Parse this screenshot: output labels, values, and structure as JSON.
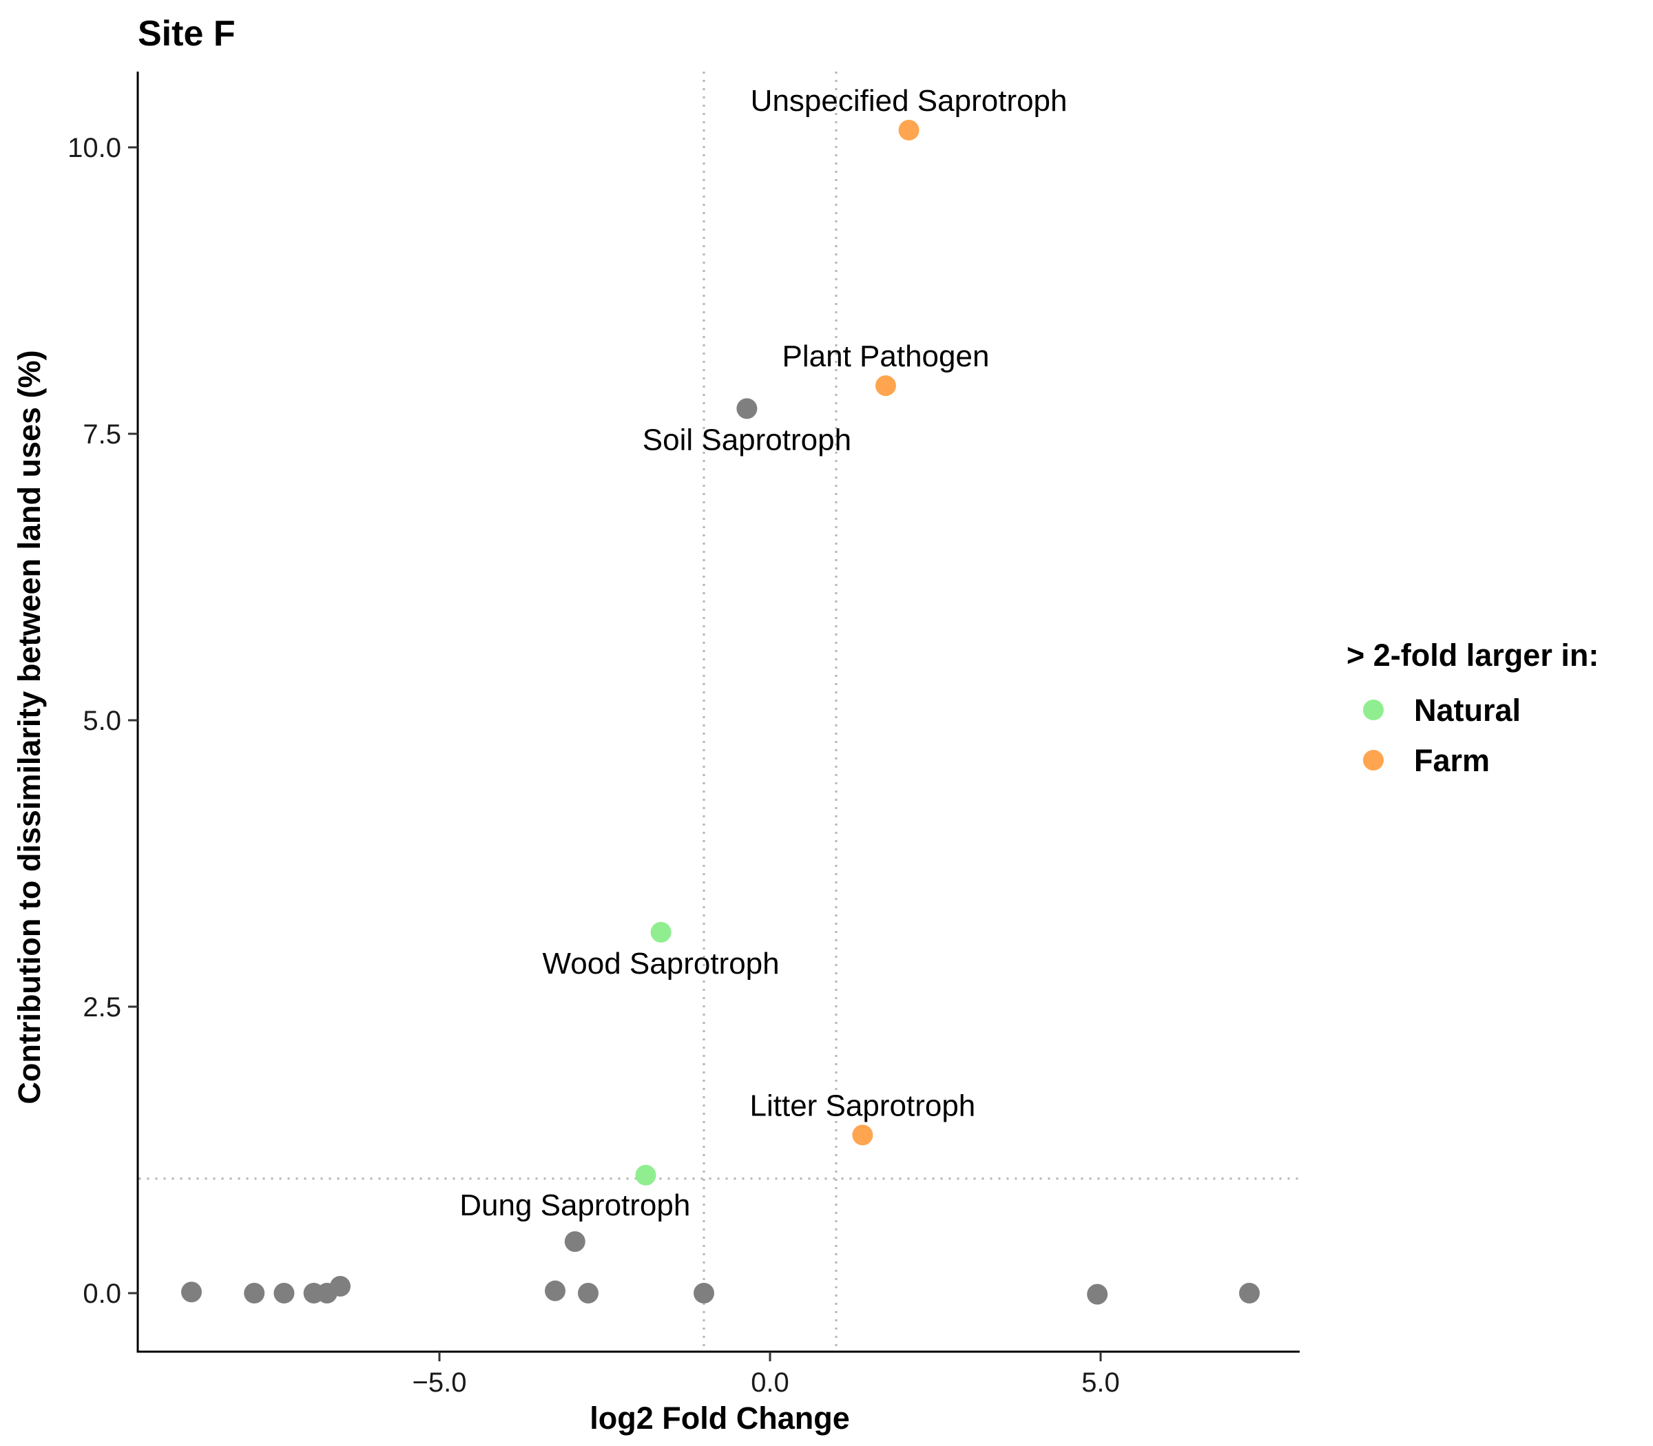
{
  "chart_data": {
    "type": "scatter",
    "title": "Site F",
    "xlabel": "log2 Fold Change",
    "ylabel": "Contribution to dissimilarity between land uses (%)",
    "xlim": [
      -9.5,
      8.0
    ],
    "ylim": [
      -0.45,
      10.65
    ],
    "x_ticks": [
      -5.0,
      0.0,
      5.0
    ],
    "x_tick_labels": [
      "−5.0",
      "0.0",
      "5.0"
    ],
    "y_ticks": [
      0.0,
      2.5,
      5.0,
      7.5,
      10.0
    ],
    "y_tick_labels": [
      "0.0",
      "2.5",
      "5.0",
      "7.5",
      "10.0"
    ],
    "grid": false,
    "reference_lines": {
      "vertical": [
        -1,
        1
      ],
      "horizontal": [
        1
      ],
      "style": "dotted",
      "color": "#b3b3b3"
    },
    "legend": {
      "title": "> 2-fold larger in:",
      "position": "right",
      "entries": [
        {
          "label": "Natural",
          "color": "#90ee90"
        },
        {
          "label": "Farm",
          "color": "#ffa54f"
        }
      ]
    },
    "colors": {
      "Natural": "#90ee90",
      "Farm": "#ffa54f",
      "none": "#7f7f7f"
    },
    "points": [
      {
        "x": 2.1,
        "y": 10.15,
        "group": "Farm",
        "label": "Unspecified Saprotroph",
        "label_pos": "above"
      },
      {
        "x": 1.75,
        "y": 7.92,
        "group": "Farm",
        "label": "Plant Pathogen",
        "label_pos": "above"
      },
      {
        "x": -0.35,
        "y": 7.72,
        "group": "none",
        "label": "Soil Saprotroph",
        "label_pos": "below"
      },
      {
        "x": -1.65,
        "y": 3.15,
        "group": "Natural",
        "label": "Wood Saprotroph",
        "label_pos": "below"
      },
      {
        "x": 1.4,
        "y": 1.38,
        "group": "Farm",
        "label": "Litter Saprotroph",
        "label_pos": "above"
      },
      {
        "x": -1.88,
        "y": 1.03,
        "group": "Natural",
        "label": "",
        "label_pos": "none"
      },
      {
        "x": -2.95,
        "y": 0.45,
        "group": "none",
        "label": "Dung Saprotroph",
        "label_pos": "above"
      },
      {
        "x": -8.75,
        "y": 0.01,
        "group": "none",
        "label": "",
        "label_pos": "none"
      },
      {
        "x": -7.8,
        "y": 0.0,
        "group": "none",
        "label": "",
        "label_pos": "none"
      },
      {
        "x": -7.35,
        "y": 0.0,
        "group": "none",
        "label": "",
        "label_pos": "none"
      },
      {
        "x": -6.9,
        "y": 0.0,
        "group": "none",
        "label": "",
        "label_pos": "none"
      },
      {
        "x": -6.7,
        "y": 0.0,
        "group": "none",
        "label": "",
        "label_pos": "none"
      },
      {
        "x": -6.5,
        "y": 0.06,
        "group": "none",
        "label": "",
        "label_pos": "none"
      },
      {
        "x": -3.25,
        "y": 0.02,
        "group": "none",
        "label": "",
        "label_pos": "none"
      },
      {
        "x": -2.75,
        "y": 0.0,
        "group": "none",
        "label": "",
        "label_pos": "none"
      },
      {
        "x": -1.0,
        "y": 0.0,
        "group": "none",
        "label": "",
        "label_pos": "none"
      },
      {
        "x": 4.95,
        "y": -0.01,
        "group": "none",
        "label": "",
        "label_pos": "none"
      },
      {
        "x": 7.25,
        "y": 0.0,
        "group": "none",
        "label": "",
        "label_pos": "none"
      }
    ]
  }
}
